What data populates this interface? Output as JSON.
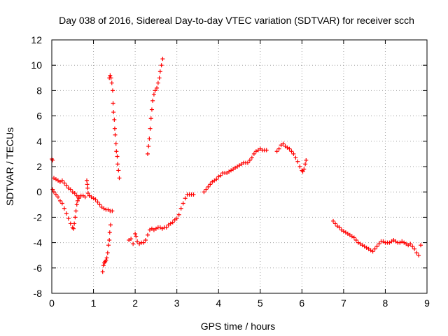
{
  "chart_data": {
    "type": "scatter",
    "title": "Day 038 of 2016, Sidereal Day-to-day VTEC variation (SDTVAR) for receiver scch",
    "xlabel": "GPS time / hours",
    "ylabel": "SDTVAR / TECUs",
    "xlim": [
      0,
      9
    ],
    "ylim": [
      -8,
      12
    ],
    "xticks": [
      "0",
      "1",
      "2",
      "3",
      "4",
      "5",
      "6",
      "7",
      "8",
      "9"
    ],
    "yticks": [
      "-8",
      "-6",
      "-4",
      "-2",
      "0",
      "2",
      "4",
      "6",
      "8",
      "10",
      "12"
    ],
    "grid": true,
    "marker": "+",
    "series": [
      {
        "name": "seg-a-upper",
        "color": "#ff0000",
        "points": [
          [
            0.0,
            2.6
          ],
          [
            0.02,
            2.5
          ],
          [
            0.05,
            1.1
          ],
          [
            0.1,
            1.0
          ],
          [
            0.15,
            0.9
          ],
          [
            0.2,
            0.8
          ],
          [
            0.25,
            0.9
          ],
          [
            0.3,
            0.7
          ],
          [
            0.35,
            0.5
          ],
          [
            0.4,
            0.3
          ],
          [
            0.45,
            0.2
          ],
          [
            0.5,
            0.0
          ],
          [
            0.55,
            -0.1
          ],
          [
            0.6,
            -0.3
          ],
          [
            0.65,
            -0.4
          ],
          [
            0.7,
            -0.3
          ],
          [
            0.75,
            -0.3
          ],
          [
            0.8,
            -0.4
          ],
          [
            0.84,
            0.9
          ],
          [
            0.85,
            0.6
          ],
          [
            0.86,
            0.3
          ],
          [
            0.87,
            -0.1
          ],
          [
            0.9,
            -0.3
          ],
          [
            0.95,
            -0.4
          ],
          [
            1.0,
            -0.5
          ],
          [
            1.05,
            -0.6
          ],
          [
            1.1,
            -0.8
          ],
          [
            1.15,
            -1.0
          ],
          [
            1.2,
            -1.2
          ],
          [
            1.25,
            -1.3
          ],
          [
            1.3,
            -1.4
          ],
          [
            1.35,
            -1.4
          ],
          [
            1.4,
            -1.5
          ],
          [
            1.45,
            -1.5
          ]
        ]
      },
      {
        "name": "seg-a-lower",
        "color": "#ff0000",
        "points": [
          [
            0.02,
            0.2
          ],
          [
            0.05,
            0.0
          ],
          [
            0.1,
            -0.2
          ],
          [
            0.15,
            -0.4
          ],
          [
            0.2,
            -0.7
          ],
          [
            0.25,
            -0.9
          ],
          [
            0.3,
            -1.3
          ],
          [
            0.35,
            -1.7
          ],
          [
            0.4,
            -2.1
          ],
          [
            0.45,
            -2.5
          ],
          [
            0.5,
            -2.8
          ],
          [
            0.52,
            -2.9
          ],
          [
            0.54,
            -2.5
          ],
          [
            0.56,
            -2.0
          ],
          [
            0.58,
            -1.5
          ],
          [
            0.6,
            -1.0
          ],
          [
            0.62,
            -0.7
          ],
          [
            0.65,
            -0.5
          ]
        ]
      },
      {
        "name": "seg-b",
        "color": "#ff0000",
        "points": [
          [
            1.22,
            -6.3
          ],
          [
            1.24,
            -5.8
          ],
          [
            1.26,
            -5.6
          ],
          [
            1.28,
            -5.5
          ],
          [
            1.3,
            -5.4
          ],
          [
            1.32,
            -5.2
          ],
          [
            1.34,
            -4.8
          ],
          [
            1.36,
            -4.2
          ],
          [
            1.38,
            -3.8
          ],
          [
            1.39,
            -3.2
          ],
          [
            1.41,
            -2.6
          ],
          [
            1.38,
            9.0
          ],
          [
            1.4,
            9.2
          ],
          [
            1.42,
            9.0
          ],
          [
            1.44,
            8.6
          ],
          [
            1.46,
            8.0
          ],
          [
            1.47,
            7.0
          ],
          [
            1.48,
            6.3
          ],
          [
            1.5,
            5.7
          ],
          [
            1.51,
            5.0
          ],
          [
            1.52,
            4.5
          ],
          [
            1.54,
            3.8
          ],
          [
            1.55,
            3.2
          ],
          [
            1.57,
            2.8
          ],
          [
            1.58,
            2.2
          ],
          [
            1.6,
            1.7
          ],
          [
            1.62,
            1.1
          ]
        ]
      },
      {
        "name": "seg-c",
        "color": "#ff0000",
        "points": [
          [
            1.85,
            -3.8
          ],
          [
            1.9,
            -3.7
          ],
          [
            1.95,
            -4.1
          ],
          [
            2.0,
            -3.3
          ],
          [
            2.02,
            -3.5
          ],
          [
            2.05,
            -3.9
          ],
          [
            2.1,
            -4.1
          ],
          [
            2.15,
            -4.0
          ],
          [
            2.2,
            -4.0
          ],
          [
            2.25,
            -3.8
          ],
          [
            2.3,
            -3.4
          ],
          [
            2.35,
            -3.0
          ],
          [
            2.4,
            -2.9
          ],
          [
            2.45,
            -3.0
          ],
          [
            2.5,
            -2.9
          ],
          [
            2.55,
            -2.8
          ],
          [
            2.6,
            -2.8
          ],
          [
            2.65,
            -2.9
          ],
          [
            2.7,
            -2.8
          ],
          [
            2.75,
            -2.8
          ],
          [
            2.8,
            -2.6
          ],
          [
            2.85,
            -2.5
          ],
          [
            2.9,
            -2.4
          ],
          [
            2.95,
            -2.2
          ],
          [
            3.0,
            -2.1
          ],
          [
            3.05,
            -1.8
          ],
          [
            3.1,
            -1.3
          ],
          [
            3.15,
            -0.9
          ],
          [
            3.2,
            -0.5
          ],
          [
            3.25,
            -0.2
          ],
          [
            3.3,
            -0.2
          ],
          [
            3.35,
            -0.2
          ],
          [
            3.4,
            -0.2
          ]
        ]
      },
      {
        "name": "seg-d",
        "color": "#ff0000",
        "points": [
          [
            2.3,
            3.0
          ],
          [
            2.32,
            3.6
          ],
          [
            2.34,
            4.2
          ],
          [
            2.36,
            5.0
          ],
          [
            2.38,
            5.8
          ],
          [
            2.4,
            6.5
          ],
          [
            2.42,
            7.2
          ],
          [
            2.45,
            7.7
          ],
          [
            2.48,
            8.0
          ],
          [
            2.52,
            8.2
          ],
          [
            2.55,
            8.6
          ],
          [
            2.58,
            9.0
          ],
          [
            2.6,
            9.5
          ],
          [
            2.63,
            10.0
          ],
          [
            2.66,
            10.5
          ]
        ]
      },
      {
        "name": "seg-e",
        "color": "#ff0000",
        "points": [
          [
            3.65,
            0.0
          ],
          [
            3.7,
            0.2
          ],
          [
            3.75,
            0.4
          ],
          [
            3.8,
            0.6
          ],
          [
            3.85,
            0.8
          ],
          [
            3.9,
            0.9
          ],
          [
            3.95,
            1.0
          ],
          [
            4.0,
            1.2
          ],
          [
            4.05,
            1.3
          ],
          [
            4.1,
            1.5
          ],
          [
            4.15,
            1.5
          ],
          [
            4.2,
            1.5
          ],
          [
            4.25,
            1.6
          ],
          [
            4.3,
            1.7
          ],
          [
            4.35,
            1.8
          ],
          [
            4.4,
            1.9
          ],
          [
            4.45,
            2.0
          ],
          [
            4.5,
            2.1
          ],
          [
            4.55,
            2.2
          ],
          [
            4.6,
            2.3
          ],
          [
            4.65,
            2.3
          ],
          [
            4.7,
            2.3
          ],
          [
            4.75,
            2.5
          ],
          [
            4.8,
            2.7
          ],
          [
            4.85,
            3.0
          ],
          [
            4.9,
            3.2
          ],
          [
            4.95,
            3.3
          ],
          [
            5.0,
            3.4
          ],
          [
            5.05,
            3.3
          ],
          [
            5.1,
            3.3
          ],
          [
            5.15,
            3.3
          ]
        ]
      },
      {
        "name": "seg-f",
        "color": "#ff0000",
        "points": [
          [
            5.4,
            3.2
          ],
          [
            5.45,
            3.4
          ],
          [
            5.5,
            3.7
          ],
          [
            5.55,
            3.8
          ],
          [
            5.6,
            3.6
          ],
          [
            5.65,
            3.5
          ],
          [
            5.7,
            3.4
          ],
          [
            5.75,
            3.2
          ],
          [
            5.8,
            3.0
          ],
          [
            5.85,
            2.7
          ],
          [
            5.9,
            2.4
          ],
          [
            5.95,
            2.0
          ],
          [
            6.0,
            1.7
          ],
          [
            6.02,
            1.6
          ],
          [
            6.05,
            1.8
          ],
          [
            6.08,
            2.2
          ],
          [
            6.1,
            2.5
          ]
        ]
      },
      {
        "name": "seg-g",
        "color": "#ff0000",
        "points": [
          [
            6.75,
            -2.3
          ],
          [
            6.8,
            -2.5
          ],
          [
            6.85,
            -2.7
          ],
          [
            6.9,
            -2.8
          ],
          [
            6.95,
            -3.0
          ],
          [
            7.0,
            -3.1
          ],
          [
            7.05,
            -3.2
          ],
          [
            7.1,
            -3.3
          ],
          [
            7.15,
            -3.4
          ],
          [
            7.2,
            -3.5
          ],
          [
            7.25,
            -3.6
          ],
          [
            7.3,
            -3.8
          ],
          [
            7.35,
            -4.0
          ],
          [
            7.4,
            -4.1
          ],
          [
            7.45,
            -4.2
          ],
          [
            7.5,
            -4.3
          ],
          [
            7.55,
            -4.4
          ],
          [
            7.6,
            -4.5
          ],
          [
            7.65,
            -4.6
          ],
          [
            7.7,
            -4.7
          ],
          [
            7.75,
            -4.5
          ],
          [
            7.8,
            -4.3
          ],
          [
            7.85,
            -4.1
          ],
          [
            7.9,
            -3.9
          ],
          [
            7.95,
            -3.9
          ],
          [
            8.0,
            -4.0
          ],
          [
            8.05,
            -4.0
          ],
          [
            8.1,
            -4.0
          ],
          [
            8.15,
            -3.9
          ],
          [
            8.2,
            -3.8
          ],
          [
            8.25,
            -3.9
          ],
          [
            8.3,
            -4.0
          ],
          [
            8.35,
            -4.0
          ],
          [
            8.4,
            -3.9
          ],
          [
            8.45,
            -4.0
          ],
          [
            8.5,
            -4.1
          ],
          [
            8.55,
            -4.2
          ],
          [
            8.6,
            -4.1
          ],
          [
            8.65,
            -4.3
          ],
          [
            8.7,
            -4.5
          ],
          [
            8.75,
            -4.8
          ],
          [
            8.8,
            -5.0
          ],
          [
            8.85,
            -4.2
          ]
        ]
      }
    ]
  }
}
